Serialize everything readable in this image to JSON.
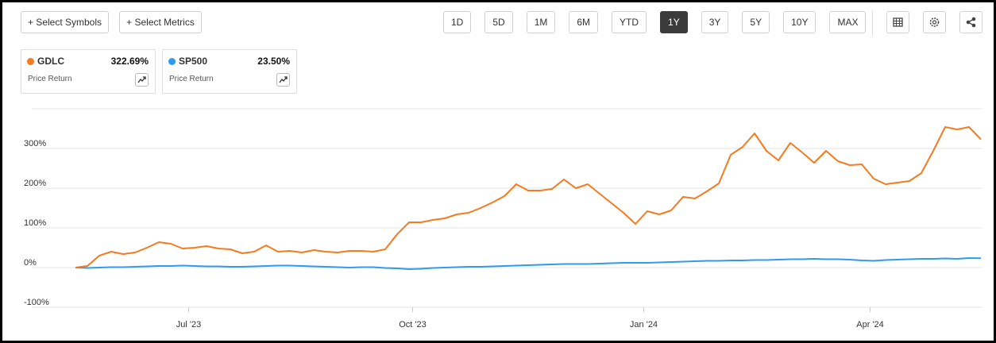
{
  "toolbar": {
    "buttons": [
      "+ Select Symbols",
      "+ Select Metrics"
    ],
    "periods": [
      "1D",
      "5D",
      "1M",
      "6M",
      "YTD",
      "1Y",
      "3Y",
      "5Y",
      "10Y",
      "MAX"
    ],
    "active_period": "1Y"
  },
  "cards": [
    {
      "name": "GDLC",
      "change": "322.69%",
      "metric": "Price Return"
    },
    {
      "name": "SP500",
      "change": "23.50%",
      "metric": "Price Return"
    }
  ],
  "chart_data": {
    "type": "line",
    "xlim": [
      0,
      76
    ],
    "xticks": [
      {
        "value": 9.5,
        "label": "Jul '23"
      },
      {
        "value": 28.3,
        "label": "Oct '23"
      },
      {
        "value": 47.7,
        "label": "Jan '24"
      },
      {
        "value": 66.7,
        "label": "Apr '24"
      }
    ],
    "ylim": [
      -100,
      400
    ],
    "yticks": [
      {
        "value": -100,
        "label": "-100%"
      },
      {
        "value": 0,
        "label": "0%"
      },
      {
        "value": 100,
        "label": "100%"
      },
      {
        "value": 200,
        "label": "200%"
      },
      {
        "value": 300,
        "label": "300%"
      }
    ],
    "grid": true,
    "series": [
      {
        "name": "GDLC",
        "color": "#f47b20",
        "values": [
          0,
          4,
          30,
          40,
          34,
          38,
          50,
          64,
          60,
          48,
          50,
          54,
          48,
          46,
          36,
          40,
          56,
          40,
          42,
          38,
          44,
          40,
          38,
          42,
          42,
          40,
          46,
          84,
          114,
          114,
          120,
          124,
          134,
          138,
          150,
          164,
          180,
          210,
          194,
          194,
          198,
          222,
          200,
          210,
          186,
          162,
          138,
          110,
          142,
          134,
          144,
          178,
          174,
          192,
          212,
          284,
          304,
          338,
          294,
          270,
          314,
          290,
          264,
          294,
          268,
          258,
          260,
          224,
          210,
          214,
          218,
          238,
          294,
          354,
          348,
          354,
          323
        ]
      },
      {
        "name": "SP500",
        "color": "#2f9bf0",
        "values": [
          0,
          -1,
          0,
          1,
          1,
          2,
          3,
          4,
          4,
          5,
          4,
          3,
          3,
          2,
          2,
          3,
          4,
          5,
          5,
          4,
          3,
          2,
          1,
          0,
          1,
          1,
          -1,
          -2,
          -4,
          -3,
          -1,
          0,
          1,
          2,
          2,
          3,
          4,
          5,
          6,
          7,
          8,
          9,
          9,
          9,
          10,
          11,
          12,
          12,
          12,
          13,
          14,
          15,
          16,
          17,
          17,
          18,
          18,
          19,
          19,
          20,
          21,
          21,
          22,
          21,
          21,
          20,
          18,
          17,
          19,
          20,
          21,
          22,
          22,
          23,
          22,
          24,
          23.5
        ]
      }
    ]
  }
}
